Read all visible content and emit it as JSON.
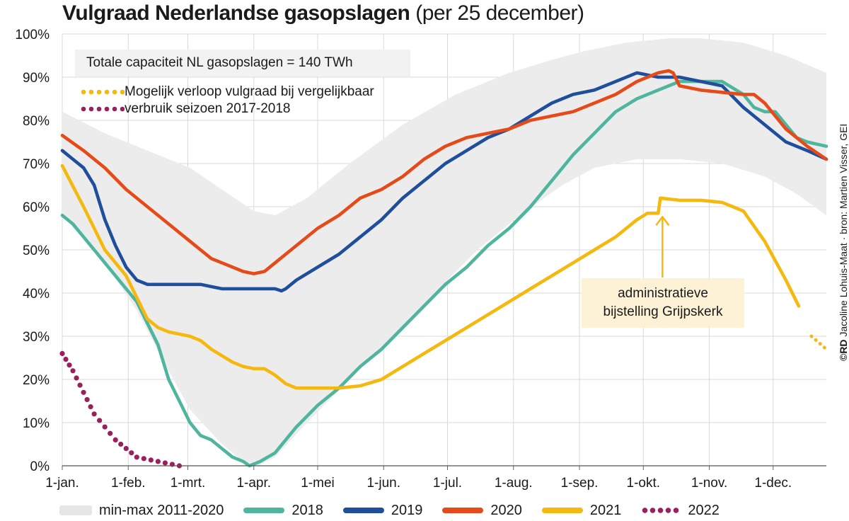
{
  "title": {
    "bold": "Vulgraad Nederlandse gasopslagen",
    "light": "(per 25 december)"
  },
  "info_box": "Totale capaciteit NL gasopslagen = 140 TWh",
  "projection_legend": {
    "line1": "Mogelijk verloop vulgraad bij vergelijkbaar",
    "line2": "verbruik seizoen 2017-2018"
  },
  "annotation": {
    "line1": "administratieve",
    "line2": "bijstelling Grijpskerk"
  },
  "source": {
    "bold": "©RD",
    "text": "Jacoline Lohuis-Maat · bron: Martien Visser, GEI"
  },
  "legend": {
    "band": "min-max 2011-2020",
    "s2018": "2018",
    "s2019": "2019",
    "s2020": "2020",
    "s2021": "2021",
    "s2022": "2022"
  },
  "colors": {
    "band": "#ececec",
    "s2018": "#4fb59e",
    "s2019": "#1f4e9c",
    "s2020": "#e64a19",
    "s2021": "#f5b80e",
    "s2022": "#9a1f5d",
    "annotation_bg": "#fdf1d6"
  },
  "chart_data": {
    "type": "line",
    "title": "Vulgraad Nederlandse gasopslagen (per 25 december)",
    "xlabel": "",
    "ylabel": "",
    "x_unit": "dag van het jaar (0 = 1 jan)",
    "xlim": [
      0,
      359
    ],
    "ylim": [
      0,
      100
    ],
    "grid": true,
    "y_ticks": [
      "0%",
      "10%",
      "20%",
      "30%",
      "40%",
      "50%",
      "60%",
      "70%",
      "80%",
      "90%",
      "100%"
    ],
    "x_ticks": [
      {
        "day": 0,
        "label": "1-jan."
      },
      {
        "day": 31,
        "label": "1-feb."
      },
      {
        "day": 59,
        "label": "1-mrt."
      },
      {
        "day": 90,
        "label": "1-apr."
      },
      {
        "day": 120,
        "label": "1-mei"
      },
      {
        "day": 151,
        "label": "1-jun."
      },
      {
        "day": 181,
        "label": "1-jul."
      },
      {
        "day": 212,
        "label": "1-aug."
      },
      {
        "day": 243,
        "label": "1-sep."
      },
      {
        "day": 273,
        "label": "1-okt."
      },
      {
        "day": 304,
        "label": "1-nov."
      },
      {
        "day": 334,
        "label": "1-dec."
      }
    ],
    "band": {
      "name": "min-max 2011-2020",
      "upper": [
        [
          0,
          82
        ],
        [
          20,
          77
        ],
        [
          40,
          73
        ],
        [
          60,
          69
        ],
        [
          75,
          64
        ],
        [
          90,
          59
        ],
        [
          100,
          58
        ],
        [
          115,
          62
        ],
        [
          135,
          70
        ],
        [
          160,
          79
        ],
        [
          185,
          86
        ],
        [
          210,
          91
        ],
        [
          230,
          94
        ],
        [
          245,
          96
        ],
        [
          265,
          98
        ],
        [
          285,
          99
        ],
        [
          300,
          99
        ],
        [
          320,
          98
        ],
        [
          340,
          95
        ],
        [
          359,
          91
        ]
      ],
      "lower": [
        [
          0,
          58
        ],
        [
          20,
          47
        ],
        [
          35,
          36
        ],
        [
          50,
          22
        ],
        [
          60,
          13
        ],
        [
          75,
          5
        ],
        [
          85,
          1
        ],
        [
          92,
          0
        ],
        [
          100,
          2
        ],
        [
          115,
          10
        ],
        [
          135,
          20
        ],
        [
          155,
          30
        ],
        [
          175,
          40
        ],
        [
          195,
          50
        ],
        [
          215,
          58
        ],
        [
          235,
          65
        ],
        [
          250,
          69
        ],
        [
          270,
          71
        ],
        [
          290,
          71
        ],
        [
          310,
          70
        ],
        [
          330,
          67
        ],
        [
          345,
          63
        ],
        [
          359,
          58
        ]
      ]
    },
    "series": [
      {
        "name": "2018",
        "points": [
          [
            0,
            58
          ],
          [
            5,
            56
          ],
          [
            10,
            53
          ],
          [
            20,
            47
          ],
          [
            30,
            41
          ],
          [
            35,
            38
          ],
          [
            45,
            28
          ],
          [
            50,
            20
          ],
          [
            55,
            15
          ],
          [
            60,
            10
          ],
          [
            65,
            7
          ],
          [
            70,
            6
          ],
          [
            75,
            4
          ],
          [
            80,
            2
          ],
          [
            85,
            1
          ],
          [
            88,
            0
          ],
          [
            93,
            1
          ],
          [
            100,
            3
          ],
          [
            110,
            9
          ],
          [
            120,
            14
          ],
          [
            130,
            18
          ],
          [
            140,
            23
          ],
          [
            150,
            27
          ],
          [
            160,
            32
          ],
          [
            170,
            37
          ],
          [
            180,
            42
          ],
          [
            190,
            46
          ],
          [
            200,
            51
          ],
          [
            210,
            55
          ],
          [
            220,
            60
          ],
          [
            230,
            66
          ],
          [
            240,
            72
          ],
          [
            250,
            77
          ],
          [
            260,
            82
          ],
          [
            270,
            85
          ],
          [
            280,
            87
          ],
          [
            290,
            89
          ],
          [
            300,
            89
          ],
          [
            310,
            89
          ],
          [
            320,
            86
          ],
          [
            325,
            83
          ],
          [
            330,
            82
          ],
          [
            335,
            82
          ],
          [
            340,
            79
          ],
          [
            345,
            76
          ],
          [
            350,
            75
          ],
          [
            359,
            74
          ]
        ]
      },
      {
        "name": "2019",
        "points": [
          [
            0,
            73
          ],
          [
            5,
            71
          ],
          [
            10,
            69
          ],
          [
            15,
            65
          ],
          [
            20,
            57
          ],
          [
            25,
            51
          ],
          [
            30,
            46
          ],
          [
            35,
            43
          ],
          [
            40,
            42
          ],
          [
            45,
            42
          ],
          [
            55,
            42
          ],
          [
            60,
            42
          ],
          [
            65,
            42
          ],
          [
            70,
            41.5
          ],
          [
            75,
            41
          ],
          [
            80,
            41
          ],
          [
            85,
            41
          ],
          [
            90,
            41
          ],
          [
            95,
            41
          ],
          [
            100,
            41
          ],
          [
            103,
            40.5
          ],
          [
            105,
            41
          ],
          [
            110,
            43
          ],
          [
            120,
            46
          ],
          [
            130,
            49
          ],
          [
            140,
            53
          ],
          [
            150,
            57
          ],
          [
            160,
            62
          ],
          [
            170,
            66
          ],
          [
            180,
            70
          ],
          [
            190,
            73
          ],
          [
            200,
            76
          ],
          [
            210,
            78
          ],
          [
            220,
            81
          ],
          [
            230,
            84
          ],
          [
            240,
            86
          ],
          [
            250,
            87
          ],
          [
            260,
            89
          ],
          [
            270,
            91
          ],
          [
            280,
            90
          ],
          [
            290,
            90
          ],
          [
            300,
            89
          ],
          [
            310,
            88
          ],
          [
            320,
            83
          ],
          [
            330,
            79
          ],
          [
            340,
            75
          ],
          [
            350,
            73
          ],
          [
            359,
            71
          ]
        ]
      },
      {
        "name": "2020",
        "points": [
          [
            0,
            76.5
          ],
          [
            10,
            73
          ],
          [
            20,
            69
          ],
          [
            30,
            64
          ],
          [
            40,
            60
          ],
          [
            50,
            56
          ],
          [
            60,
            52
          ],
          [
            65,
            50
          ],
          [
            70,
            48
          ],
          [
            75,
            47
          ],
          [
            80,
            46
          ],
          [
            85,
            45
          ],
          [
            90,
            44.5
          ],
          [
            95,
            45
          ],
          [
            100,
            47
          ],
          [
            110,
            51
          ],
          [
            120,
            55
          ],
          [
            130,
            58
          ],
          [
            140,
            62
          ],
          [
            150,
            64
          ],
          [
            160,
            67
          ],
          [
            170,
            71
          ],
          [
            180,
            74
          ],
          [
            190,
            76
          ],
          [
            200,
            77
          ],
          [
            210,
            78
          ],
          [
            220,
            80
          ],
          [
            230,
            81
          ],
          [
            240,
            82
          ],
          [
            250,
            84
          ],
          [
            260,
            86
          ],
          [
            270,
            89
          ],
          [
            280,
            91
          ],
          [
            285,
            91.5
          ],
          [
            287,
            91
          ],
          [
            290,
            88
          ],
          [
            300,
            87
          ],
          [
            310,
            86.5
          ],
          [
            320,
            86
          ],
          [
            325,
            86
          ],
          [
            330,
            84
          ],
          [
            340,
            78
          ],
          [
            350,
            74
          ],
          [
            359,
            71
          ]
        ]
      },
      {
        "name": "2021",
        "points": [
          [
            0,
            69.5
          ],
          [
            10,
            60
          ],
          [
            20,
            50
          ],
          [
            30,
            44
          ],
          [
            35,
            39
          ],
          [
            40,
            34
          ],
          [
            45,
            32
          ],
          [
            50,
            31
          ],
          [
            60,
            30
          ],
          [
            65,
            29
          ],
          [
            70,
            27
          ],
          [
            80,
            24
          ],
          [
            85,
            23
          ],
          [
            90,
            22.5
          ],
          [
            95,
            22.5
          ],
          [
            100,
            21
          ],
          [
            105,
            19
          ],
          [
            110,
            18
          ],
          [
            120,
            18
          ],
          [
            130,
            18
          ],
          [
            140,
            18.5
          ],
          [
            150,
            20
          ],
          [
            160,
            23
          ],
          [
            170,
            26
          ],
          [
            180,
            29
          ],
          [
            190,
            32
          ],
          [
            200,
            35
          ],
          [
            210,
            38
          ],
          [
            220,
            41
          ],
          [
            230,
            44
          ],
          [
            240,
            47
          ],
          [
            250,
            50
          ],
          [
            260,
            53
          ],
          [
            270,
            57
          ],
          [
            275,
            58.5
          ],
          [
            280,
            58.5
          ],
          [
            281,
            62
          ],
          [
            290,
            61.5
          ],
          [
            300,
            61.5
          ],
          [
            310,
            61
          ],
          [
            320,
            59
          ],
          [
            330,
            52
          ],
          [
            340,
            43
          ],
          [
            346,
            37
          ],
          [
            352,
            30
          ],
          [
            359,
            27
          ]
        ]
      },
      {
        "name": "2022",
        "points": [
          [
            0,
            26
          ],
          [
            5,
            22
          ],
          [
            10,
            17
          ],
          [
            15,
            12
          ],
          [
            20,
            9
          ],
          [
            25,
            6
          ],
          [
            30,
            4
          ],
          [
            35,
            2
          ],
          [
            45,
            1
          ],
          [
            55,
            0
          ]
        ]
      }
    ],
    "projection": {
      "series": "2021",
      "from_day": 349,
      "style": "dotted",
      "label": "Mogelijk verloop vulgraad bij vergelijkbaar verbruik seizoen 2017-2018"
    },
    "annotations": [
      {
        "text": "administratieve bijstelling Grijpskerk",
        "day": 281,
        "value": 58
      }
    ]
  }
}
